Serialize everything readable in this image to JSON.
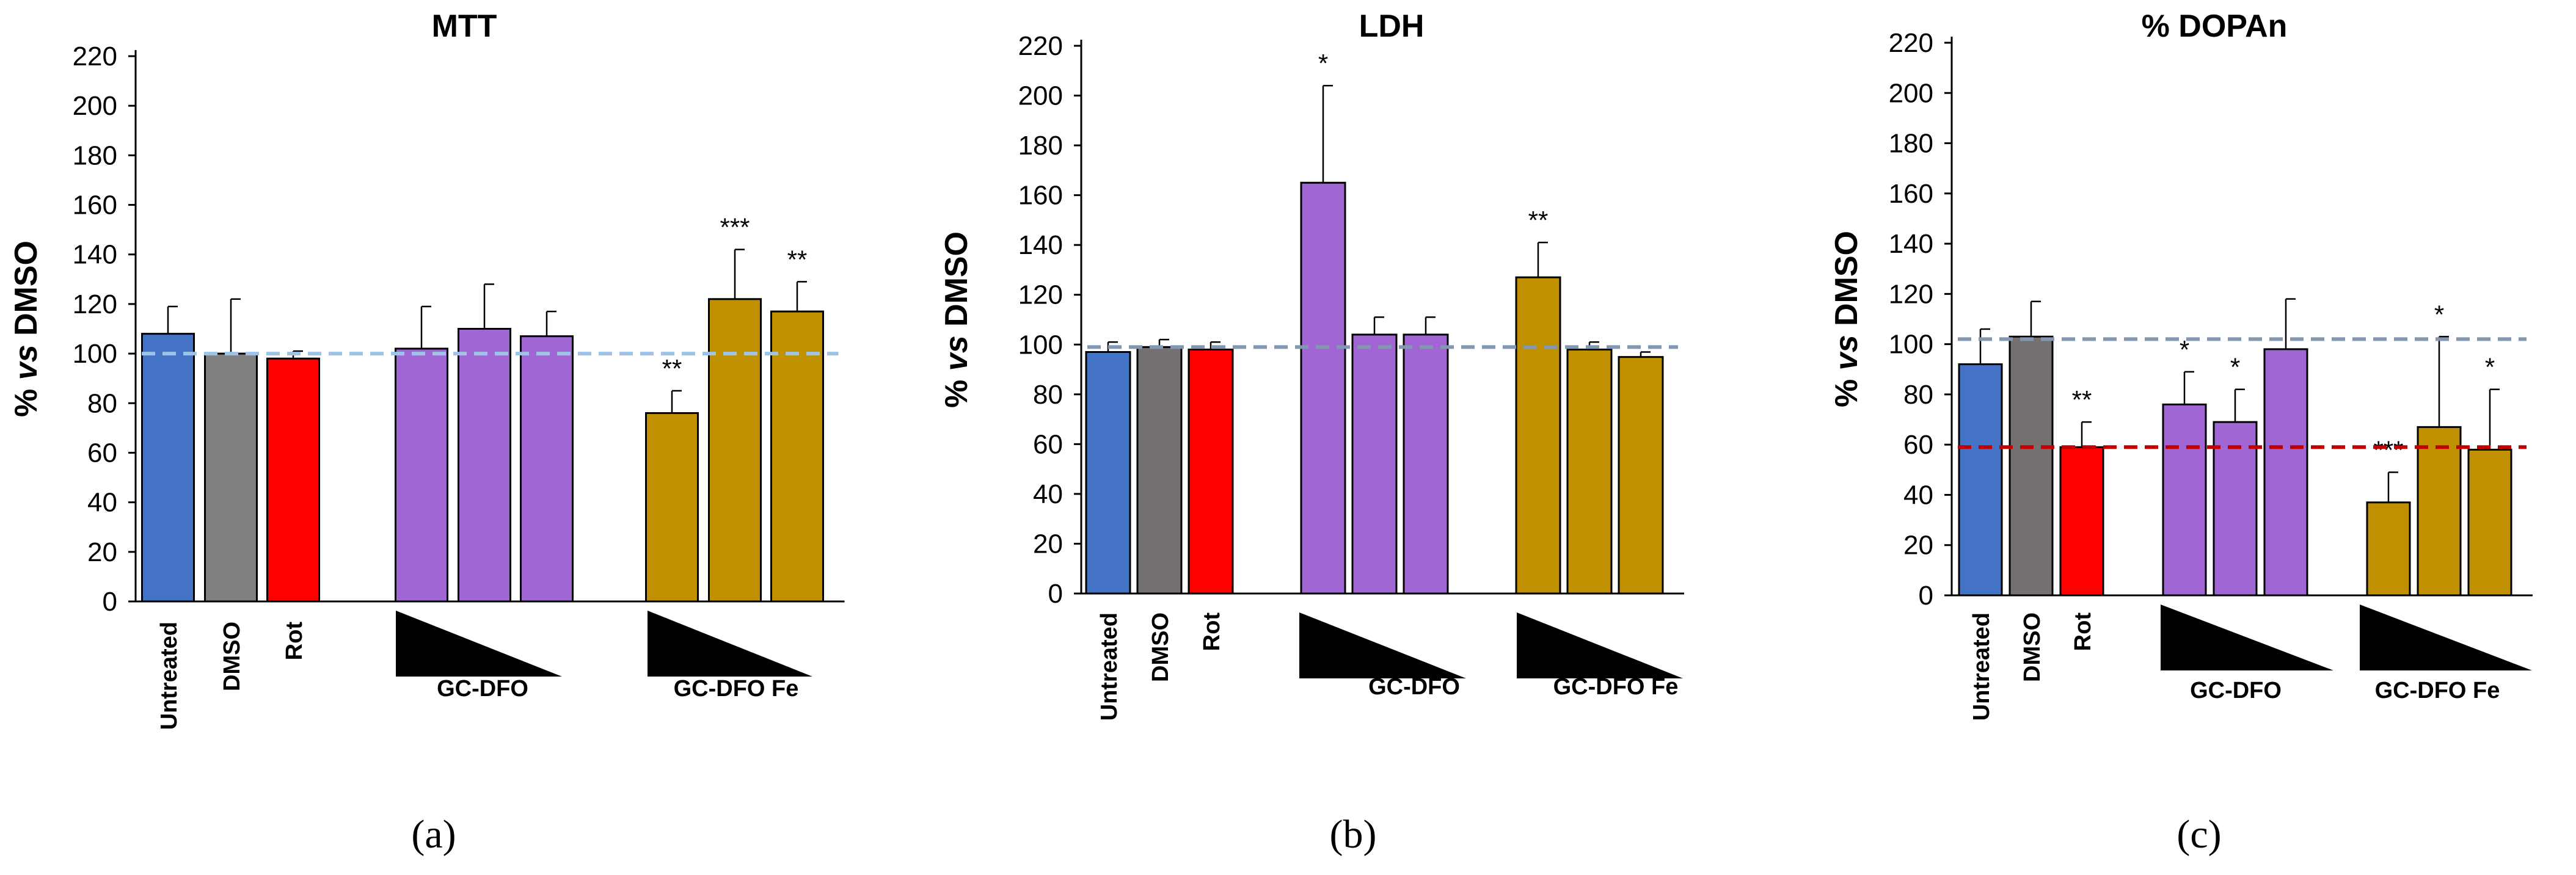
{
  "chart_data": [
    {
      "type": "bar",
      "panel": "(a)",
      "title": "MTT",
      "ylabel": "% vs DMSO",
      "ylabel_parts": [
        "% ",
        "vs",
        " DMSO"
      ],
      "ylim": [
        0,
        220
      ],
      "yticks": [
        0,
        20,
        40,
        60,
        80,
        100,
        120,
        140,
        160,
        180,
        200,
        220
      ],
      "categories": [
        "Untreated",
        "DMSO",
        "Rot"
      ],
      "groups": [
        "GC-DFO",
        "GC-DFO Fe"
      ],
      "bars": [
        {
          "label": "Untreated",
          "value": 108,
          "error": 11,
          "color": "#4472c4",
          "sig": ""
        },
        {
          "label": "DMSO",
          "value": 100,
          "error": 22,
          "color": "#808080",
          "sig": ""
        },
        {
          "label": "Rot",
          "value": 98,
          "error": 3,
          "color": "#ff0000",
          "sig": ""
        },
        {
          "label": "GC-DFO high",
          "value": 102,
          "error": 17,
          "color": "#a066d3",
          "sig": ""
        },
        {
          "label": "GC-DFO mid",
          "value": 110,
          "error": 18,
          "color": "#a066d3",
          "sig": ""
        },
        {
          "label": "GC-DFO low",
          "value": 107,
          "error": 10,
          "color": "#a066d3",
          "sig": ""
        },
        {
          "label": "GC-DFO Fe high",
          "value": 76,
          "error": 9,
          "color": "#bf9000",
          "sig": "**"
        },
        {
          "label": "GC-DFO Fe mid",
          "value": 122,
          "error": 20,
          "color": "#bf9000",
          "sig": "***"
        },
        {
          "label": "GC-DFO Fe low",
          "value": 117,
          "error": 12,
          "color": "#bf9000",
          "sig": "**"
        }
      ],
      "reference_lines": [
        {
          "value": 100,
          "color": "#9dc3e6"
        }
      ]
    },
    {
      "type": "bar",
      "panel": "(b)",
      "title": "LDH",
      "ylabel": "% vs DMSO",
      "ylabel_parts": [
        "% ",
        "vs",
        " DMSO"
      ],
      "ylim": [
        0,
        220
      ],
      "yticks": [
        0,
        20,
        40,
        60,
        80,
        100,
        120,
        140,
        160,
        180,
        200,
        220
      ],
      "categories": [
        "Untreated",
        "DMSO",
        "Rot"
      ],
      "groups": [
        "GC-DFO",
        "GC-DFO Fe"
      ],
      "bars": [
        {
          "label": "Untreated",
          "value": 97,
          "error": 4,
          "color": "#4472c4",
          "sig": ""
        },
        {
          "label": "DMSO",
          "value": 99,
          "error": 3,
          "color": "#767171",
          "sig": ""
        },
        {
          "label": "Rot",
          "value": 98,
          "error": 3,
          "color": "#ff0000",
          "sig": ""
        },
        {
          "label": "GC-DFO high",
          "value": 165,
          "error": 39,
          "color": "#a066d3",
          "sig": "*"
        },
        {
          "label": "GC-DFO mid",
          "value": 104,
          "error": 7,
          "color": "#a066d3",
          "sig": ""
        },
        {
          "label": "GC-DFO low",
          "value": 104,
          "error": 7,
          "color": "#a066d3",
          "sig": ""
        },
        {
          "label": "GC-DFO Fe high",
          "value": 127,
          "error": 14,
          "color": "#bf9000",
          "sig": "**"
        },
        {
          "label": "GC-DFO Fe mid",
          "value": 98,
          "error": 3,
          "color": "#bf9000",
          "sig": ""
        },
        {
          "label": "GC-DFO Fe low",
          "value": 95,
          "error": 2,
          "color": "#bf9000",
          "sig": ""
        }
      ],
      "reference_lines": [
        {
          "value": 99,
          "color": "#8497b0"
        }
      ]
    },
    {
      "type": "bar",
      "panel": "(c)",
      "title": "% DOPAn",
      "ylabel": "% vs DMSO",
      "ylabel_parts": [
        "% ",
        "vs",
        " DMSO"
      ],
      "ylim": [
        0,
        220
      ],
      "yticks": [
        0,
        20,
        40,
        60,
        80,
        100,
        120,
        140,
        160,
        180,
        200,
        220
      ],
      "categories": [
        "Untreated",
        "DMSO",
        "Rot"
      ],
      "groups": [
        "GC-DFO",
        "GC-DFO Fe"
      ],
      "bars": [
        {
          "label": "Untreated",
          "value": 92,
          "error": 14,
          "color": "#4472c4",
          "sig": ""
        },
        {
          "label": "DMSO",
          "value": 103,
          "error": 14,
          "color": "#767171",
          "sig": ""
        },
        {
          "label": "Rot",
          "value": 59,
          "error": 10,
          "color": "#ff0000",
          "sig": "**"
        },
        {
          "label": "GC-DFO high",
          "value": 76,
          "error": 13,
          "color": "#a066d3",
          "sig": "*"
        },
        {
          "label": "GC-DFO mid",
          "value": 69,
          "error": 13,
          "color": "#a066d3",
          "sig": "*"
        },
        {
          "label": "GC-DFO low",
          "value": 98,
          "error": 20,
          "color": "#a066d3",
          "sig": ""
        },
        {
          "label": "GC-DFO Fe high",
          "value": 37,
          "error": 12,
          "color": "#bf9000",
          "sig": "***"
        },
        {
          "label": "GC-DFO Fe mid",
          "value": 67,
          "error": 36,
          "color": "#bf9000",
          "sig": "*"
        },
        {
          "label": "GC-DFO Fe low",
          "value": 58,
          "error": 24,
          "color": "#bf9000",
          "sig": "*"
        }
      ],
      "reference_lines": [
        {
          "value": 102,
          "color": "#8497b0"
        },
        {
          "value": 59,
          "color": "#c00000"
        }
      ]
    }
  ]
}
